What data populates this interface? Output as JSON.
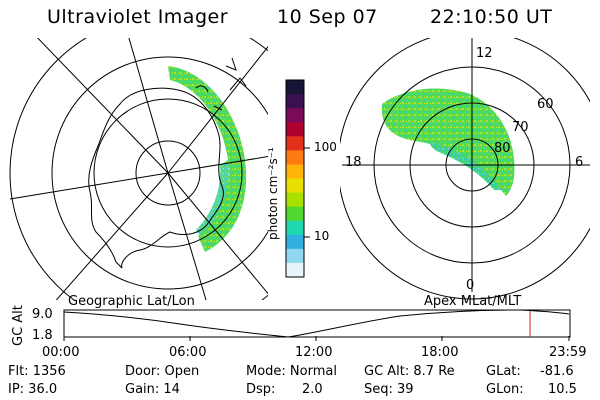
{
  "header": {
    "instrument": "Ultraviolet Imager",
    "date": "10 Sep 07",
    "time": "22:10:50 UT"
  },
  "colorbar": {
    "unit_label": "photon cm⁻²s⁻¹",
    "ticks": [
      "100",
      "10"
    ],
    "colors_top_to_bottom": [
      "#151535",
      "#3a1050",
      "#7a0a5a",
      "#b00030",
      "#e2301a",
      "#ff7a10",
      "#ffb40a",
      "#e8e000",
      "#a8e000",
      "#50d830",
      "#20d8b0",
      "#30b0e0",
      "#90d8f0",
      "#e8f4f8"
    ]
  },
  "maps": {
    "geographic": {
      "caption": "Geographic Lat/Lon"
    },
    "apex": {
      "caption": "Apex MLat/MLT",
      "mlt_labels": {
        "top": "12",
        "left": "18",
        "right": "6",
        "bottom": "0"
      },
      "mlat_labels": [
        "60",
        "70",
        "80"
      ]
    }
  },
  "timeline": {
    "axis_title": "GC Alt",
    "y_ticks": [
      "9.0",
      "1.8"
    ],
    "x_ticks": [
      "00:00",
      "06:00",
      "12:00",
      "18:00",
      "23:59"
    ],
    "marker_color": "#cc2020"
  },
  "info": {
    "flt": "Flt: 1356",
    "ip": "IP: 36.0",
    "door": "Door: Open",
    "gain": "Gain: 14",
    "mode": "Mode: Normal",
    "dsp_label": "Dsp:",
    "dsp_value": "2.0",
    "gc_alt": "GC Alt: 8.7 Re",
    "seq": "Seq: 39",
    "glat_label": "GLat:",
    "glat_value": "-81.6",
    "glon_label": "GLon:",
    "glon_value": "10.5"
  }
}
